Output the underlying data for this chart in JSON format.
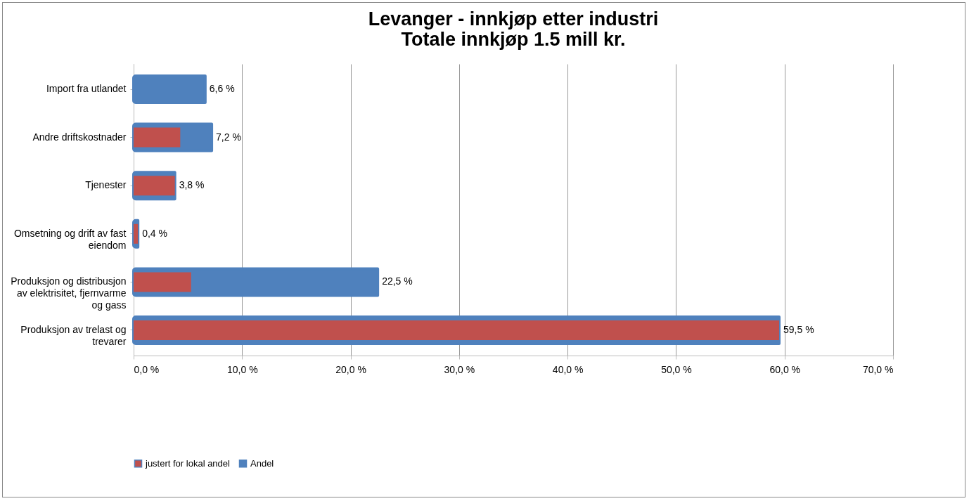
{
  "chart_data": {
    "type": "bar",
    "orientation": "horizontal",
    "title": "Levanger - innkjøp etter industri\nTotale innkjøp 1.5 mill kr.",
    "categories": [
      "Import fra utlandet",
      "Andre driftskostnader",
      "Tjenester",
      "Omsetning og drift av fast eiendom",
      "Produksjon og distribusjon av elektrisitet, fjernvarme og gass",
      "Produksjon av trelast og trevarer"
    ],
    "series": [
      {
        "name": "justert for lokal andel",
        "color": "#c0504d",
        "values": [
          null,
          4.3,
          3.8,
          0.4,
          5.3,
          59.5
        ]
      },
      {
        "name": "Andel",
        "color": "#4f81bd",
        "values": [
          6.6,
          7.2,
          3.8,
          0.4,
          22.5,
          59.5
        ],
        "value_labels": [
          "6,6 %",
          "7,2 %",
          "3,8 %",
          "0,4 %",
          "22,5 %",
          "59,5 %"
        ]
      }
    ],
    "xlim": [
      0,
      70
    ],
    "xticks": [
      {
        "value": 0,
        "label": "0,0 %"
      },
      {
        "value": 10,
        "label": "10,0 %"
      },
      {
        "value": 20,
        "label": "20,0 %"
      },
      {
        "value": 30,
        "label": "30,0 %"
      },
      {
        "value": 40,
        "label": "40,0 %"
      },
      {
        "value": 50,
        "label": "50,0 %"
      },
      {
        "value": 60,
        "label": "60,0 %"
      },
      {
        "value": 70,
        "label": "70,0 %"
      }
    ],
    "grid": "x",
    "legend": "bottom"
  }
}
